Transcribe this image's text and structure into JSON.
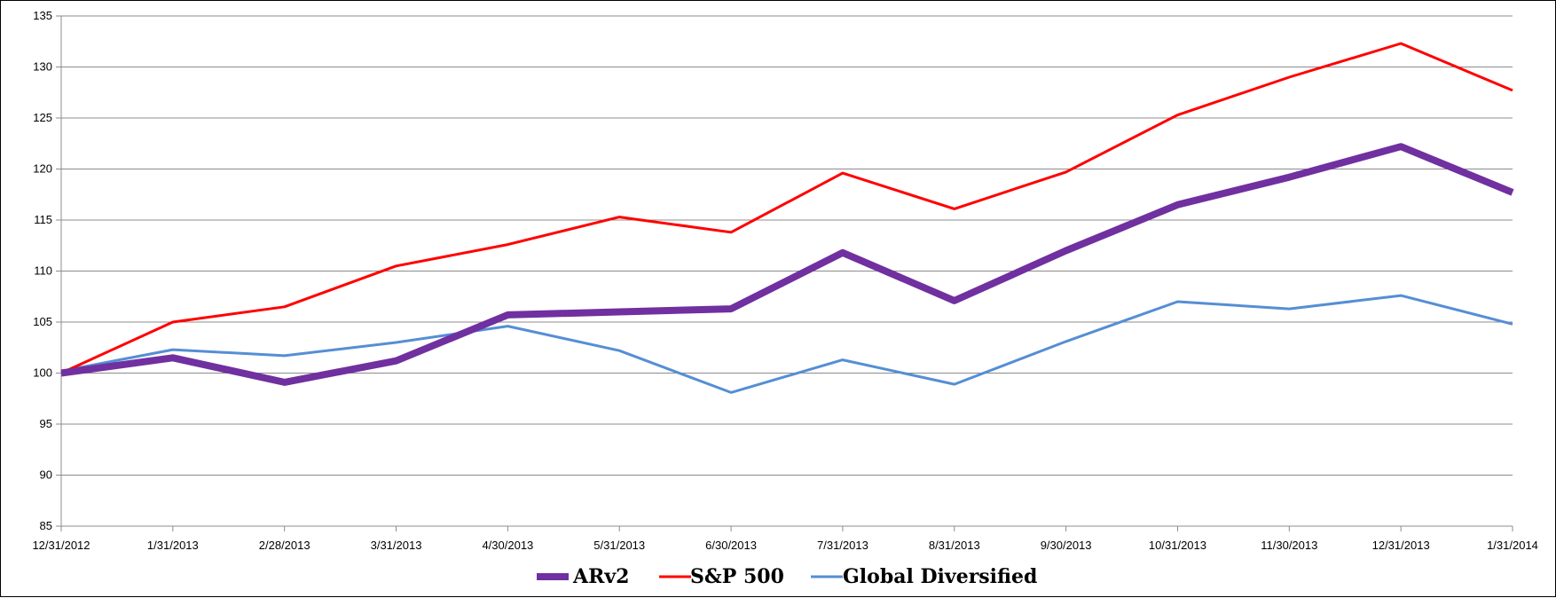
{
  "chart_data": {
    "type": "line",
    "title": "",
    "xlabel": "",
    "ylabel": "",
    "ylim": [
      85,
      135
    ],
    "yticks": [
      85,
      90,
      95,
      100,
      105,
      110,
      115,
      120,
      125,
      130,
      135
    ],
    "grid": true,
    "legend_position": "bottom",
    "categories": [
      "12/31/2012",
      "1/31/2013",
      "2/28/2013",
      "3/31/2013",
      "4/30/2013",
      "5/31/2013",
      "6/30/2013",
      "7/31/2013",
      "8/31/2013",
      "9/30/2013",
      "10/31/2013",
      "11/30/2013",
      "12/31/2013",
      "1/31/2014"
    ],
    "series": [
      {
        "name": "ARv2",
        "color": "#7030a0",
        "values": [
          100.0,
          101.5,
          99.1,
          101.2,
          105.7,
          106.0,
          106.3,
          111.8,
          107.1,
          112.0,
          116.5,
          119.2,
          122.2,
          117.7
        ]
      },
      {
        "name": "S&P 500",
        "color": "#ff0000",
        "values": [
          100.0,
          105.0,
          106.5,
          110.5,
          112.6,
          115.3,
          113.8,
          119.6,
          116.1,
          119.7,
          125.3,
          129.0,
          132.3,
          127.7
        ]
      },
      {
        "name": "Global Diversified",
        "color": "#558ed5",
        "values": [
          100.2,
          102.3,
          101.7,
          103.0,
          104.6,
          102.2,
          98.1,
          101.3,
          98.9,
          103.1,
          107.0,
          106.3,
          107.6,
          104.8
        ]
      }
    ]
  }
}
